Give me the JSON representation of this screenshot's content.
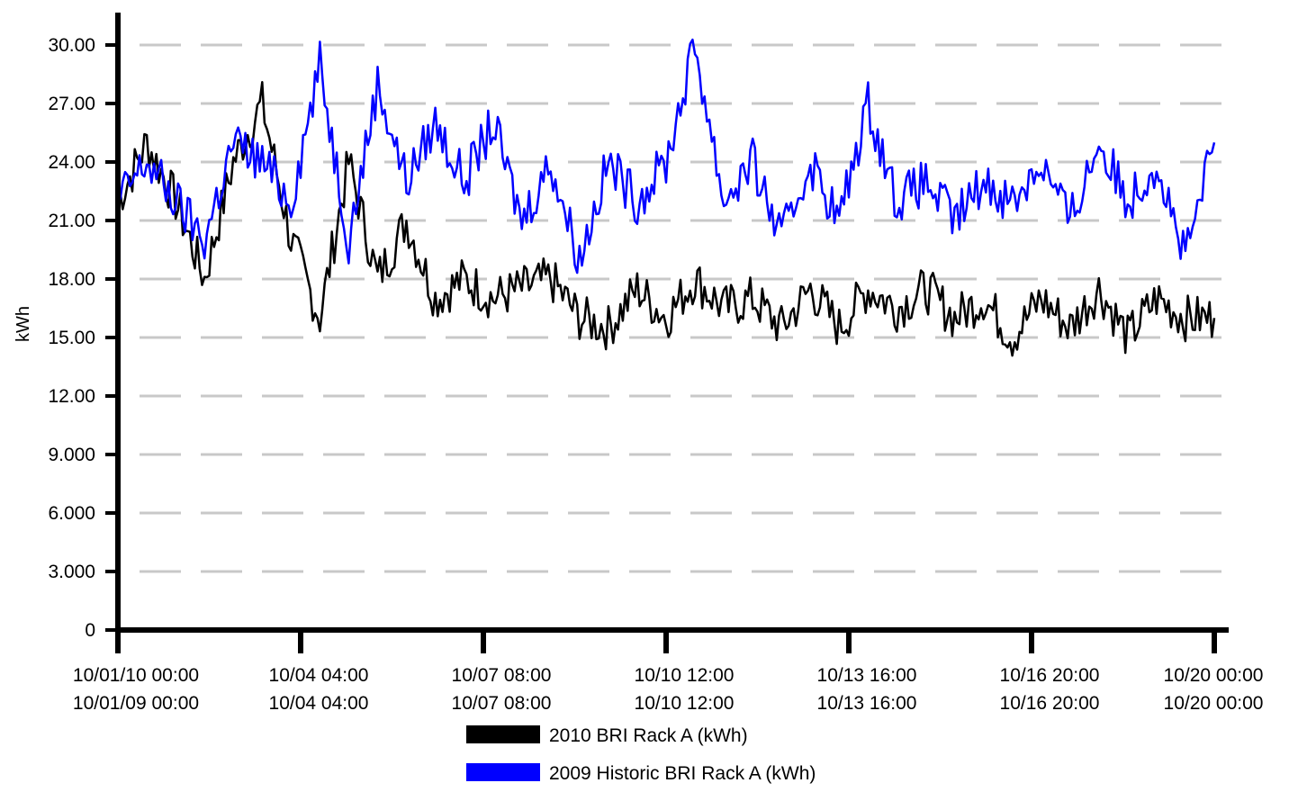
{
  "chart_data": {
    "type": "line",
    "ylabel": "kWh",
    "ylim": [
      0,
      31.5
    ],
    "yticks": [
      {
        "value": 0,
        "label": "0"
      },
      {
        "value": 3,
        "label": "3.000"
      },
      {
        "value": 6,
        "label": "6.000"
      },
      {
        "value": 9,
        "label": "9.000"
      },
      {
        "value": 12,
        "label": "12.00"
      },
      {
        "value": 15,
        "label": "15.00"
      },
      {
        "value": 18,
        "label": "18.00"
      },
      {
        "value": 21,
        "label": "21.00"
      },
      {
        "value": 24,
        "label": "24.00"
      },
      {
        "value": 27,
        "label": "27.00"
      },
      {
        "value": 30,
        "label": "30.00"
      }
    ],
    "xticks": [
      {
        "line1": "10/01/10 00:00",
        "line2": "10/01/09 00:00"
      },
      {
        "line1": "10/04 04:00",
        "line2": "10/04 04:00"
      },
      {
        "line1": "10/07 08:00",
        "line2": "10/07 08:00"
      },
      {
        "line1": "10/10 12:00",
        "line2": "10/10 12:00"
      },
      {
        "line1": "10/13 16:00",
        "line2": "10/13 16:00"
      },
      {
        "line1": "10/16 20:00",
        "line2": "10/16 20:00"
      },
      {
        "line1": "10/20 00:00",
        "line2": "10/20 00:00"
      }
    ],
    "x_days": [
      0,
      0.5,
      1,
      1.5,
      2,
      2.5,
      3,
      3.5,
      4,
      4.5,
      5,
      5.5,
      6,
      6.5,
      7,
      7.5,
      8,
      8.5,
      9,
      9.5,
      10,
      10.5,
      11,
      11.5,
      12,
      12.5,
      13,
      13.5,
      14,
      14.5,
      15,
      15.5,
      16,
      16.5,
      17,
      17.5,
      18,
      18.5,
      19
    ],
    "grid": "horizontal-dashed",
    "legend_position": "bottom",
    "series": [
      {
        "name": "2010 BRI Rack A (kWh)",
        "color": "#000000",
        "values": [
          22,
          25,
          22,
          18,
          24,
          27,
          20,
          16,
          24,
          18,
          21,
          17,
          18,
          17,
          17.5,
          18,
          16,
          15.5,
          17.5,
          16,
          18,
          16.5,
          17,
          15.5,
          17.5,
          15.5,
          17.5,
          16.5,
          17.5,
          16,
          17,
          15,
          17,
          15.5,
          17.5,
          15,
          17,
          16,
          16
        ]
      },
      {
        "name": "2009 Historic BRI Rack A (kWh)",
        "color": "#0000ff",
        "values": [
          22,
          24,
          22,
          20,
          25,
          24,
          22,
          29,
          20,
          28,
          23,
          26,
          23,
          26,
          21,
          24,
          19,
          24,
          22,
          24,
          30,
          22,
          24,
          20,
          24,
          21,
          27,
          22,
          23,
          21,
          23,
          22,
          24,
          21,
          25,
          22,
          24,
          19,
          25
        ]
      }
    ]
  }
}
